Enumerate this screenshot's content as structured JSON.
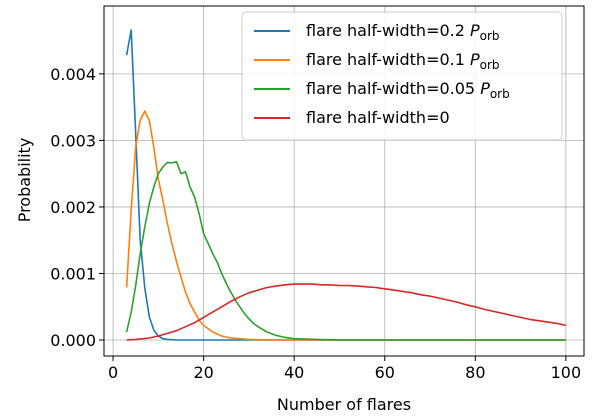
{
  "chart_data": {
    "type": "line",
    "title": "",
    "xlabel": "Number of flares",
    "ylabel": "Probability",
    "xlim": [
      -2,
      104
    ],
    "ylim": [
      -0.00024,
      0.00502
    ],
    "xticks": [
      0,
      20,
      40,
      60,
      80,
      100
    ],
    "xtick_labels": [
      "0",
      "20",
      "40",
      "60",
      "80",
      "100"
    ],
    "yticks": [
      0.0,
      0.001,
      0.002,
      0.003,
      0.004
    ],
    "ytick_labels": [
      "0.000",
      "0.001",
      "0.002",
      "0.003",
      "0.004"
    ],
    "grid": true,
    "legend_position": "top-right",
    "series": [
      {
        "name": "flare half-width=0.2",
        "name_symbol": "P",
        "name_subscript": "orb",
        "color": "#1f77b4",
        "x": [
          3,
          4,
          5,
          6,
          7,
          8,
          9,
          10,
          11,
          12,
          14,
          16,
          20,
          30,
          40,
          50,
          60,
          70,
          80,
          90,
          100
        ],
        "y": [
          0.00428,
          0.00466,
          0.0031,
          0.0015,
          0.00078,
          0.00035,
          0.00015,
          6e-05,
          2e-05,
          1e-05,
          0.0,
          0.0,
          0.0,
          0.0,
          0.0,
          0.0,
          0.0,
          0.0,
          0.0,
          0.0,
          0.0
        ]
      },
      {
        "name": "flare half-width=0.1",
        "name_symbol": "P",
        "name_subscript": "orb",
        "color": "#ff7f0e",
        "x": [
          3,
          4,
          5,
          6,
          7,
          8,
          9,
          10,
          11,
          12,
          13,
          14,
          15,
          16,
          17,
          18,
          19,
          20,
          22,
          24,
          26,
          28,
          30,
          35,
          40,
          50,
          60,
          70,
          80,
          90,
          100
        ],
        "y": [
          0.00079,
          0.00195,
          0.0029,
          0.0033,
          0.00344,
          0.0033,
          0.0029,
          0.00242,
          0.0021,
          0.00175,
          0.00145,
          0.00118,
          0.00095,
          0.00072,
          0.00055,
          0.00042,
          0.0003,
          0.00022,
          0.00012,
          6e-05,
          3e-05,
          2e-05,
          1e-05,
          0.0,
          0.0,
          0.0,
          0.0,
          0.0,
          0.0,
          0.0,
          0.0
        ]
      },
      {
        "name": "flare half-width=0.05",
        "name_symbol": "P",
        "name_subscript": "orb",
        "color": "#2ca02c",
        "x": [
          3,
          4,
          5,
          6,
          7,
          8,
          9,
          10,
          11,
          12,
          13,
          14,
          15,
          16,
          17,
          18,
          19,
          20,
          21,
          22,
          23,
          24,
          25,
          26,
          27,
          28,
          29,
          30,
          31,
          32,
          34,
          36,
          38,
          40,
          45,
          50,
          60,
          70,
          80,
          90,
          100
        ],
        "y": [
          0.00012,
          0.00042,
          0.00082,
          0.0013,
          0.0017,
          0.00205,
          0.0023,
          0.0025,
          0.0026,
          0.00267,
          0.00266,
          0.00268,
          0.0025,
          0.00253,
          0.0023,
          0.00215,
          0.0019,
          0.0016,
          0.00145,
          0.0013,
          0.00117,
          0.001,
          0.00085,
          0.00072,
          0.0006,
          0.0005,
          0.0004,
          0.00032,
          0.00025,
          0.0002,
          0.00012,
          7e-05,
          4e-05,
          2e-05,
          1e-05,
          0.0,
          0.0,
          0.0,
          0.0,
          0.0,
          0.0
        ]
      },
      {
        "name": "flare half-width=0",
        "color": "#d62728",
        "x": [
          3,
          5,
          8,
          10,
          12,
          14,
          16,
          18,
          20,
          22,
          24,
          26,
          28,
          30,
          32,
          34,
          36,
          38,
          40,
          42,
          44,
          46,
          48,
          50,
          52,
          54,
          56,
          58,
          60,
          62,
          64,
          66,
          68,
          70,
          72,
          74,
          76,
          78,
          80,
          82,
          84,
          86,
          88,
          90,
          92,
          94,
          96,
          98,
          100
        ],
        "y": [
          0.0,
          1e-05,
          3e-05,
          6e-05,
          0.0001,
          0.00014,
          0.0002,
          0.00026,
          0.00034,
          0.00042,
          0.0005,
          0.00058,
          0.00065,
          0.00071,
          0.00075,
          0.00079,
          0.00081,
          0.00083,
          0.00084,
          0.00084,
          0.00084,
          0.00083,
          0.00083,
          0.00082,
          0.00082,
          0.00081,
          0.0008,
          0.00079,
          0.00077,
          0.00075,
          0.00073,
          0.00071,
          0.00068,
          0.00066,
          0.00063,
          0.0006,
          0.00057,
          0.00053,
          0.0005,
          0.00046,
          0.00043,
          0.0004,
          0.00037,
          0.00034,
          0.00031,
          0.00029,
          0.00027,
          0.00025,
          0.00022
        ]
      }
    ]
  }
}
